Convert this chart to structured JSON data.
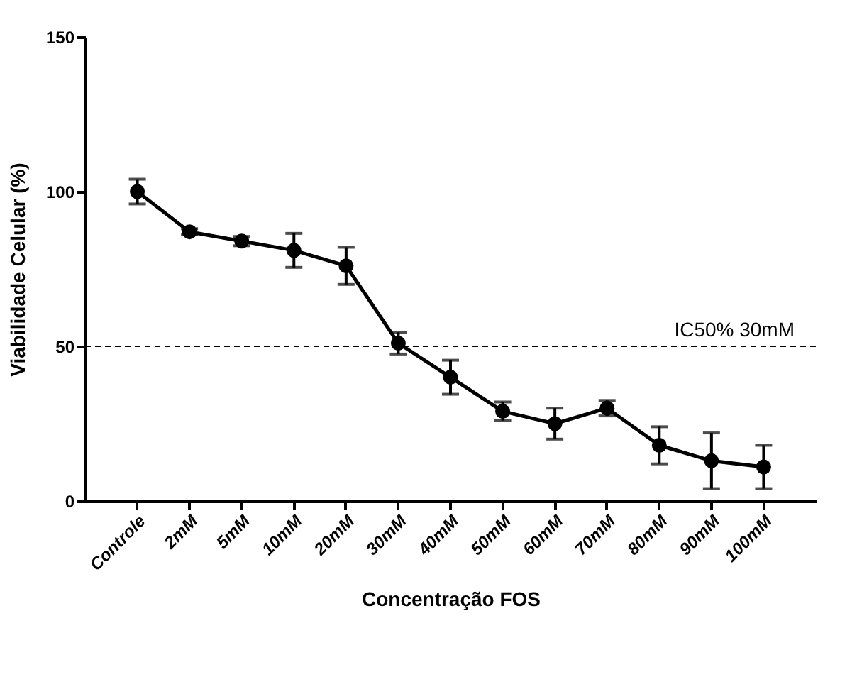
{
  "chart_data": {
    "type": "line",
    "xlabel": "Concentração FOS",
    "ylabel": "Viabilidade Celular (%)",
    "categories": [
      "Controle",
      "2mM",
      "5mM",
      "10mM",
      "20mM",
      "30mM",
      "40mM",
      "50mM",
      "60mM",
      "70mM",
      "80mM",
      "90mM",
      "100mM"
    ],
    "series": [
      {
        "color": "#000000",
        "values": [
          100,
          87,
          84,
          81,
          76,
          51,
          40,
          29,
          25,
          30,
          18,
          13,
          11
        ],
        "errors": [
          4,
          1,
          1.5,
          5.5,
          6,
          3.5,
          5.5,
          3,
          5,
          2.5,
          6,
          9,
          7
        ]
      }
    ],
    "ylim": [
      0,
      150
    ],
    "yticks": [
      0,
      50,
      100,
      150
    ],
    "grid": false,
    "marker": "circle",
    "line_style": "solid",
    "ref_lines": [
      {
        "axis": "y",
        "value": 50,
        "label": "IC50% 30mM",
        "color": "#000000",
        "line_style": "dashed"
      }
    ]
  }
}
